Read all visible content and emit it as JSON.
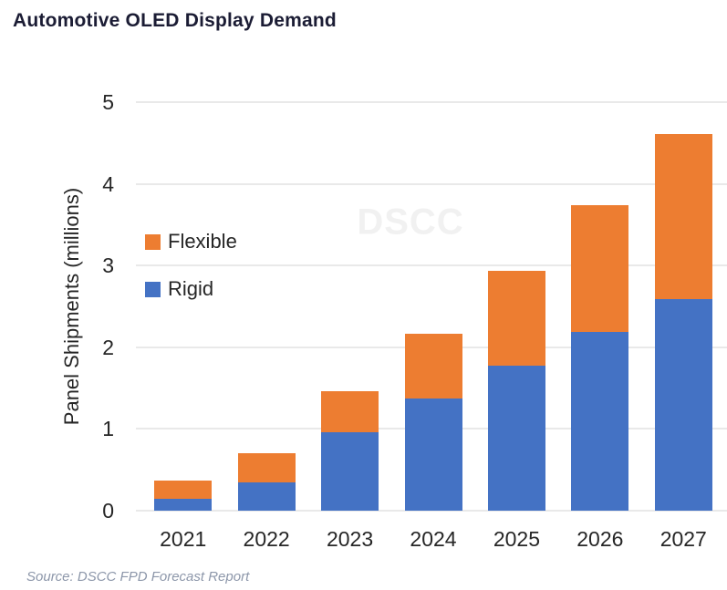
{
  "title": "Automotive OLED Display Demand",
  "watermark": "DSCC",
  "source_note": "Source: DSCC FPD Forecast Report",
  "chart_data": {
    "type": "bar",
    "stacked": true,
    "title": "Automotive OLED Display Demand",
    "xlabel": "",
    "ylabel": "Panel Shipments (millions)",
    "ylim": [
      0,
      5
    ],
    "yticks": [
      0,
      1,
      2,
      3,
      4,
      5
    ],
    "grid": true,
    "categories": [
      "2021",
      "2022",
      "2023",
      "2024",
      "2025",
      "2026",
      "2027"
    ],
    "series": [
      {
        "name": "Rigid",
        "color": "#4472C4",
        "values": [
          0.15,
          0.35,
          0.96,
          1.37,
          1.78,
          2.19,
          2.59
        ]
      },
      {
        "name": "Flexible",
        "color": "#ED7D31",
        "values": [
          0.22,
          0.35,
          0.5,
          0.79,
          1.15,
          1.55,
          2.02
        ]
      }
    ],
    "totals": [
      0.37,
      0.7,
      1.46,
      2.16,
      2.93,
      3.74,
      4.61
    ],
    "legend_position": "inside-left",
    "legend_order": [
      "Flexible",
      "Rigid"
    ]
  },
  "colors": {
    "rigid": "#4472C4",
    "flexible": "#ED7D31",
    "gridline": "#e9e9e9",
    "axis_text": "#262626",
    "title_text": "#1b1c34",
    "source_text": "#8d97aa",
    "watermark_text": "#f1f1f1"
  }
}
